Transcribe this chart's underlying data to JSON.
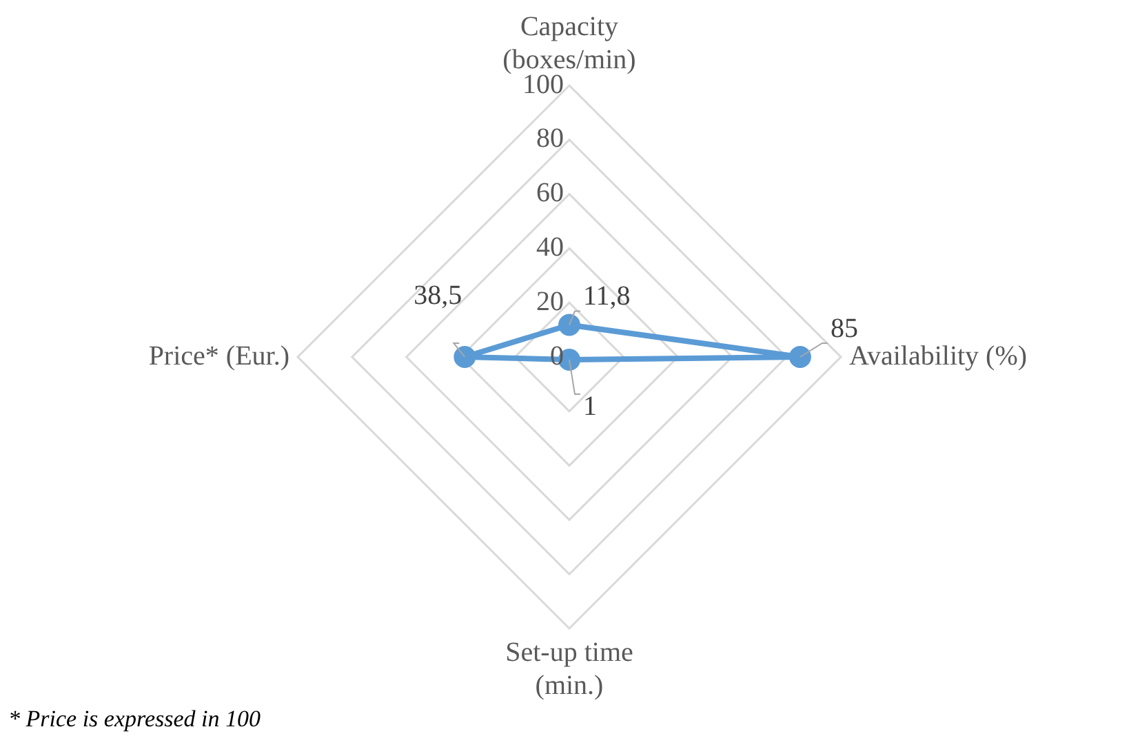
{
  "chart_data": {
    "type": "radar",
    "categories": [
      "Capacity (boxes/min)",
      "Availability (%)",
      "Set-up time (min.)",
      "Price* (Eur.)"
    ],
    "series": [
      {
        "color": "#5b9bd5",
        "values": [
          11.8,
          85,
          1,
          38.5
        ],
        "value_labels": [
          "11,8",
          "85",
          "1",
          "38,5"
        ]
      }
    ],
    "ylim": [
      0,
      100
    ],
    "yticks": [
      0,
      20,
      40,
      60,
      80,
      100
    ],
    "grid": true,
    "marker": "circle",
    "annotations": [
      "* Price is expressed in 100"
    ]
  }
}
